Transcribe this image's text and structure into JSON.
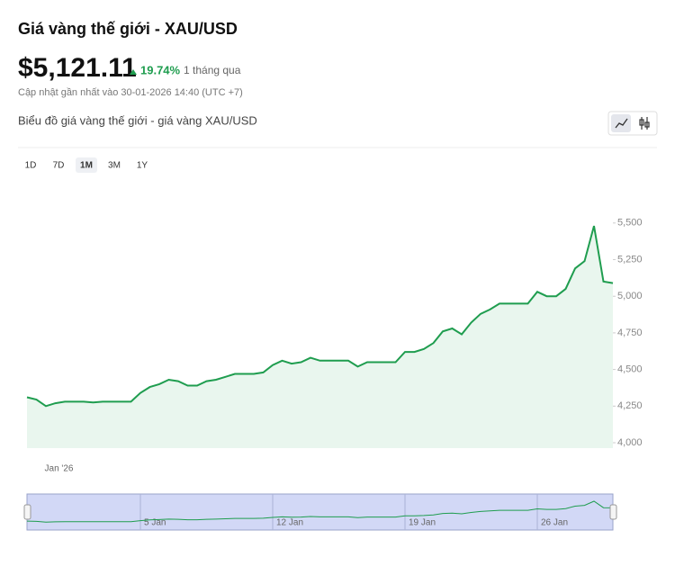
{
  "header": {
    "title": "Giá vàng thế giới - XAU/USD",
    "price": "$5,121.11",
    "change": "19.74%",
    "period": "1 tháng qua",
    "updated": "Cập nhật gần nhất vào 30-01-2026 14:40 (UTC +7)",
    "chart_title": "Biểu đồ giá vàng thế giới - giá vàng XAU/USD",
    "ranges": [
      "1D",
      "7D",
      "1M",
      "3M",
      "1Y"
    ],
    "selected_range": "1M"
  },
  "chart_data": {
    "type": "line",
    "color": "#1f9d4f",
    "fill": "#e9f6ee",
    "categories": [
      null,
      null,
      null,
      "Jan '26",
      null,
      null,
      null,
      null,
      null,
      null,
      null,
      null,
      null,
      null,
      null,
      null,
      null,
      null,
      null,
      null,
      null,
      null,
      null,
      null,
      null,
      null,
      null,
      null,
      null,
      null,
      null,
      null,
      null,
      null,
      null,
      null,
      null,
      null,
      null,
      null,
      null,
      null,
      null,
      null,
      null,
      null,
      null,
      null,
      null,
      null,
      null,
      null,
      null,
      null,
      null,
      null,
      null,
      null,
      null,
      null,
      null,
      null,
      null
    ],
    "values": [
      4310,
      4295,
      4250,
      4270,
      4280,
      4280,
      4280,
      4275,
      4280,
      4280,
      4280,
      4280,
      4340,
      4380,
      4400,
      4430,
      4420,
      4390,
      4390,
      4420,
      4430,
      4450,
      4470,
      4470,
      4470,
      4480,
      4530,
      4560,
      4540,
      4550,
      4580,
      4560,
      4560,
      4560,
      4560,
      4520,
      4550,
      4550,
      4550,
      4550,
      4620,
      4620,
      4640,
      4680,
      4760,
      4780,
      4740,
      4820,
      4880,
      4910,
      4950,
      4950,
      4950,
      4950,
      5030,
      5000,
      5000,
      5050,
      5190,
      5240,
      5480,
      5100,
      5090
    ],
    "ylim": [
      4000,
      5800
    ],
    "yticks": [
      {
        "value": 4000,
        "label": "4,000"
      },
      {
        "value": 4250,
        "label": "4,250"
      },
      {
        "value": 4500,
        "label": "4,500"
      },
      {
        "value": 4750,
        "label": "4,750"
      },
      {
        "value": 5000,
        "label": "5,000"
      },
      {
        "value": 5250,
        "label": "5,250"
      },
      {
        "value": 5500,
        "label": "5,500"
      }
    ],
    "navigator_categories": [
      null,
      null,
      null,
      null,
      null,
      null,
      null,
      null,
      null,
      null,
      null,
      null,
      "5 Jan",
      null,
      null,
      null,
      null,
      null,
      null,
      null,
      null,
      null,
      null,
      null,
      null,
      null,
      "12 Jan",
      null,
      null,
      null,
      null,
      null,
      null,
      null,
      null,
      null,
      null,
      null,
      null,
      null,
      "19 Jan",
      null,
      null,
      null,
      null,
      null,
      null,
      null,
      null,
      null,
      null,
      null,
      null,
      null,
      "26 Jan",
      null,
      null,
      null,
      null,
      null,
      null,
      null,
      null
    ]
  }
}
